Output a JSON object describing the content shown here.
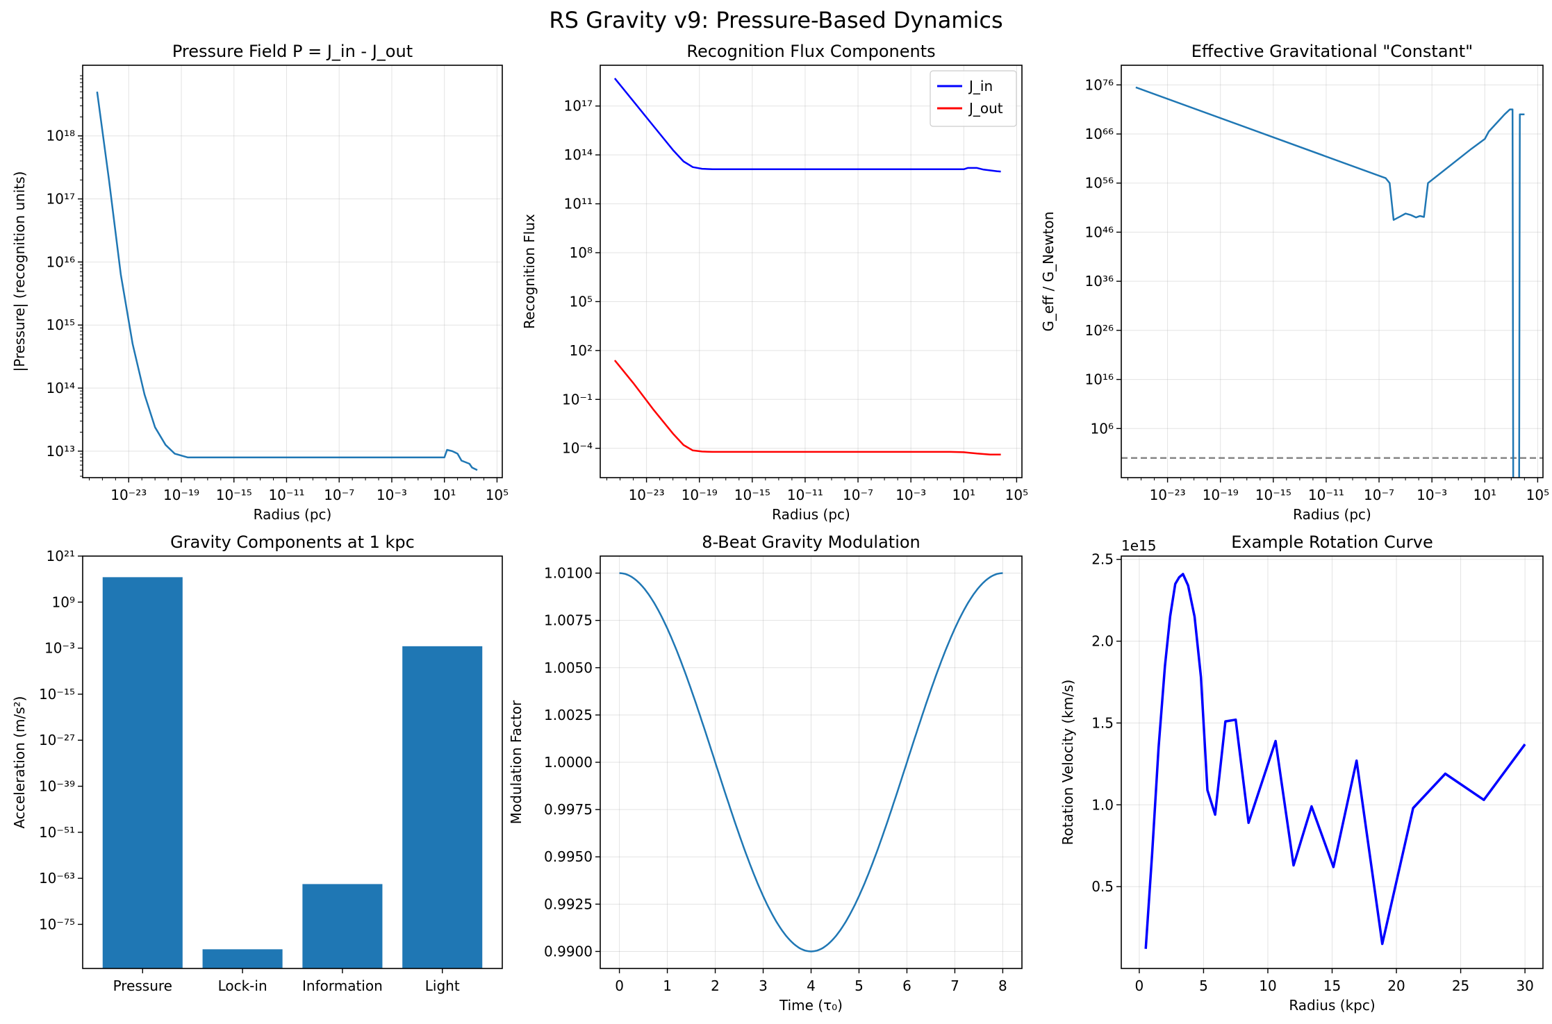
{
  "figure": {
    "title": "RS Gravity v9: Pressure-Based Dynamics"
  },
  "chart_data": [
    {
      "id": "pressure",
      "type": "line",
      "title": "Pressure Field P = J_in - J_out",
      "xlabel": "Radius (pc)",
      "ylabel": "|Pressure| (recognition units)",
      "xscale": "log",
      "yscale": "log",
      "xlim_exp": [
        -26.5,
        5.4
      ],
      "ylim_exp": [
        12.58,
        19.12
      ],
      "xticks_exp": [
        -23,
        -19,
        -15,
        -11,
        -7,
        -3,
        1,
        5
      ],
      "yticks_exp": [
        13,
        14,
        15,
        16,
        17,
        18
      ],
      "grid": true,
      "series": [
        {
          "color": "#1f77b4",
          "points": [
            [
              -25.4,
              18.7
            ],
            [
              -24.5,
              17.3
            ],
            [
              -23.6,
              15.8
            ],
            [
              -22.7,
              14.7
            ],
            [
              -21.8,
              13.9
            ],
            [
              -21.0,
              13.38
            ],
            [
              -20.2,
              13.1
            ],
            [
              -19.5,
              12.96
            ],
            [
              -18.5,
              12.9
            ],
            [
              -15,
              12.9
            ],
            [
              -5,
              12.9
            ],
            [
              0,
              12.9
            ],
            [
              1.0,
              12.9
            ],
            [
              1.2,
              13.02
            ],
            [
              1.6,
              13.0
            ],
            [
              2.0,
              12.96
            ],
            [
              2.3,
              12.85
            ],
            [
              2.9,
              12.8
            ],
            [
              3.1,
              12.74
            ],
            [
              3.5,
              12.7
            ]
          ]
        }
      ]
    },
    {
      "id": "flux",
      "type": "line",
      "title": "Recognition Flux Components",
      "xlabel": "Radius (pc)",
      "ylabel": "Recognition Flux",
      "xscale": "log",
      "yscale": "log",
      "xlim_exp": [
        -26.5,
        5.4
      ],
      "ylim_exp": [
        -5.8,
        19.5
      ],
      "xticks_exp": [
        -23,
        -19,
        -15,
        -11,
        -7,
        -3,
        1,
        5
      ],
      "yticks_exp": [
        -4,
        -1,
        2,
        5,
        8,
        11,
        14,
        17
      ],
      "grid": true,
      "legend": {
        "position": "top-right",
        "entries": [
          "J_in",
          "J_out"
        ]
      },
      "series": [
        {
          "name": "J_in",
          "color": "#0000ff",
          "points": [
            [
              -25.4,
              18.7
            ],
            [
              -24,
              17.3
            ],
            [
              -22.5,
              15.8
            ],
            [
              -21,
              14.3
            ],
            [
              -20.2,
              13.6
            ],
            [
              -19.5,
              13.25
            ],
            [
              -18.8,
              13.15
            ],
            [
              -18,
              13.12
            ],
            [
              -10,
              13.12
            ],
            [
              0,
              13.12
            ],
            [
              1,
              13.12
            ],
            [
              1.3,
              13.2
            ],
            [
              2,
              13.2
            ],
            [
              2.5,
              13.1
            ],
            [
              3.5,
              13.0
            ],
            [
              3.8,
              12.98
            ]
          ]
        },
        {
          "name": "J_out",
          "color": "#ff0000",
          "points": [
            [
              -25.4,
              1.4
            ],
            [
              -24,
              0
            ],
            [
              -22.5,
              -1.6
            ],
            [
              -21,
              -3.1
            ],
            [
              -20.2,
              -3.8
            ],
            [
              -19.5,
              -4.13
            ],
            [
              -18.8,
              -4.2
            ],
            [
              -18,
              -4.22
            ],
            [
              -10,
              -4.22
            ],
            [
              0,
              -4.22
            ],
            [
              1,
              -4.24
            ],
            [
              2,
              -4.32
            ],
            [
              3,
              -4.38
            ],
            [
              3.8,
              -4.38
            ]
          ]
        }
      ]
    },
    {
      "id": "geff",
      "type": "line",
      "title": "Effective Gravitational \"Constant\"",
      "xlabel": "Radius (pc)",
      "ylabel": "G_eff / G_Newton",
      "xscale": "log",
      "yscale": "log",
      "xlim_exp": [
        -26.5,
        5.4
      ],
      "ylim_exp": [
        -4,
        80
      ],
      "xticks_exp": [
        -23,
        -19,
        -15,
        -11,
        -7,
        -3,
        1,
        5
      ],
      "yticks_exp": [
        6,
        16,
        26,
        36,
        46,
        56,
        66,
        76
      ],
      "grid": true,
      "hline": {
        "y_exp": 0,
        "color": "#808080",
        "style": "dashed"
      },
      "series": [
        {
          "color": "#1f77b4",
          "points": [
            [
              -25.4,
              75.5
            ],
            [
              -6.5,
              57
            ],
            [
              -6.2,
              56
            ],
            [
              -5.9,
              48.5
            ],
            [
              -5.4,
              49.2
            ],
            [
              -5,
              49.8
            ],
            [
              -4.6,
              49.5
            ],
            [
              -4.2,
              49
            ],
            [
              -3.9,
              49.3
            ],
            [
              -3.6,
              49.1
            ],
            [
              -3.3,
              56
            ],
            [
              0,
              63
            ],
            [
              1.0,
              65
            ],
            [
              1.3,
              66.5
            ],
            [
              2.5,
              70
            ],
            [
              2.9,
              71
            ],
            [
              3.1,
              71
            ],
            [
              3.15,
              -5
            ],
            [
              3.6,
              -5
            ],
            [
              3.65,
              70
            ],
            [
              4.0,
              70
            ]
          ]
        }
      ]
    },
    {
      "id": "components",
      "type": "bar",
      "title": "Gravity Components at 1 kpc",
      "ylabel": "Acceleration (m/s²)",
      "yscale": "log",
      "ylim_exp": [
        -86.5,
        21
      ],
      "yticks_exp": [
        -75,
        -63,
        -51,
        -39,
        -27,
        -15,
        -3,
        9,
        21
      ],
      "color": "#1f77b4",
      "categories": [
        "Pressure",
        "Lock-in",
        "Information",
        "Light"
      ],
      "values_exp": [
        15.5,
        -81.5,
        -64.5,
        -2.5
      ]
    },
    {
      "id": "modulation",
      "type": "line",
      "title": "8-Beat Gravity Modulation",
      "xlabel": "Time (τ₀)",
      "ylabel": "Modulation Factor",
      "xlim": [
        -0.4,
        8.4
      ],
      "ylim": [
        0.9891,
        1.0109
      ],
      "xticks": [
        0,
        1,
        2,
        3,
        4,
        5,
        6,
        7,
        8
      ],
      "xtick_labels": [
        "0",
        "1",
        "2",
        "3",
        "4",
        "5",
        "6",
        "7",
        "8"
      ],
      "yticks": [
        0.99,
        0.9925,
        0.995,
        0.9975,
        1.0,
        1.0025,
        1.005,
        1.0075,
        1.01
      ],
      "ytick_labels": [
        "0.9900",
        "0.9925",
        "0.9950",
        "0.9975",
        "1.0000",
        "1.0025",
        "1.0050",
        "1.0075",
        "1.0100"
      ],
      "grid": true,
      "series": [
        {
          "color": "#1f77b4",
          "function": "1 + 0.01*cos(2*pi*t/8)",
          "t_range": [
            0,
            8
          ]
        }
      ]
    },
    {
      "id": "rotation",
      "type": "line",
      "title": "Example Rotation Curve",
      "xlabel": "Radius (kpc)",
      "ylabel": "Rotation Velocity (km/s)",
      "offset_label": "1e15",
      "xlim": [
        -1.4,
        31.4
      ],
      "ylim": [
        0.0,
        2.52
      ],
      "xticks": [
        0,
        5,
        10,
        15,
        20,
        25,
        30
      ],
      "xtick_labels": [
        "0",
        "5",
        "10",
        "15",
        "20",
        "25",
        "30"
      ],
      "yticks": [
        0.5,
        1.0,
        1.5,
        2.0,
        2.5
      ],
      "ytick_labels": [
        "0.5",
        "1.0",
        "1.5",
        "2.0",
        "2.5"
      ],
      "grid": true,
      "series": [
        {
          "color": "#0000ff",
          "points": [
            [
              0.5,
              0.12
            ],
            [
              1.0,
              0.7
            ],
            [
              1.5,
              1.35
            ],
            [
              2.0,
              1.85
            ],
            [
              2.4,
              2.15
            ],
            [
              2.8,
              2.35
            ],
            [
              3.1,
              2.39
            ],
            [
              3.4,
              2.41
            ],
            [
              3.8,
              2.34
            ],
            [
              4.3,
              2.15
            ],
            [
              4.8,
              1.78
            ],
            [
              5.3,
              1.09
            ],
            [
              5.9,
              0.94
            ],
            [
              6.7,
              1.51
            ],
            [
              7.5,
              1.52
            ],
            [
              8.5,
              0.89
            ],
            [
              10.6,
              1.39
            ],
            [
              12.0,
              0.63
            ],
            [
              13.4,
              0.99
            ],
            [
              15.1,
              0.62
            ],
            [
              16.9,
              1.27
            ],
            [
              18.9,
              0.15
            ],
            [
              21.3,
              0.98
            ],
            [
              23.8,
              1.19
            ],
            [
              26.8,
              1.03
            ],
            [
              30.0,
              1.37
            ]
          ]
        }
      ]
    }
  ]
}
